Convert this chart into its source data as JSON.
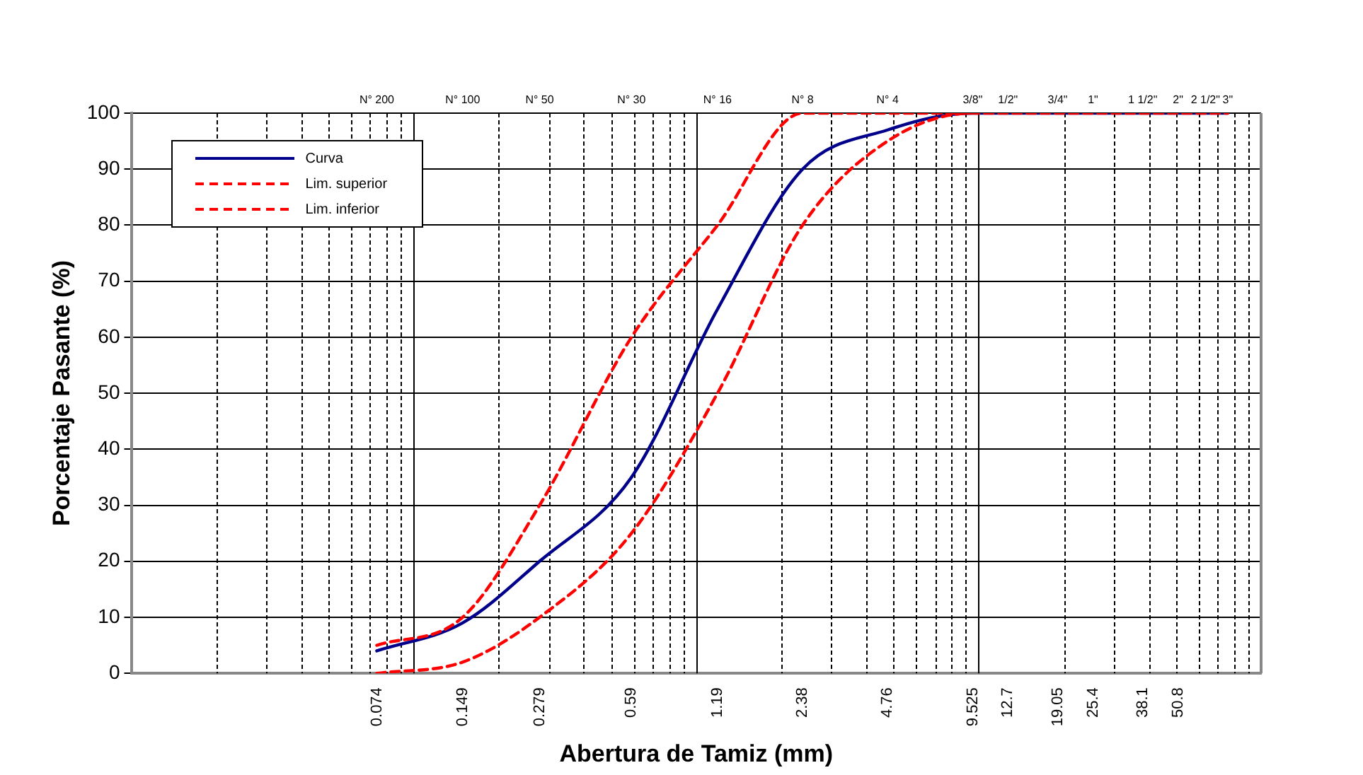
{
  "chart_data": {
    "type": "line",
    "xlabel": "Abertura de Tamiz (mm)",
    "ylabel": "Porcentaje Pasante (%)",
    "log": "x",
    "grid": true,
    "legend": "top left",
    "xlim": [
      0.01,
      100
    ],
    "xticks": [
      {
        "value": 0.074,
        "label": "0.074"
      },
      {
        "value": 0.149,
        "label": "0.149"
      },
      {
        "value": 0.279,
        "label": "0.279"
      },
      {
        "value": 0.59,
        "label": "0.59"
      },
      {
        "value": 1.19,
        "label": "1.19"
      },
      {
        "value": 2.38,
        "label": "2.38"
      },
      {
        "value": 4.76,
        "label": "4.76"
      },
      {
        "value": 9.525,
        "label": "9.525"
      },
      {
        "value": 12.7,
        "label": "12.7"
      },
      {
        "value": 19.05,
        "label": "19.05"
      },
      {
        "value": 25.4,
        "label": "25.4"
      },
      {
        "value": 38.1,
        "label": "38.1"
      },
      {
        "value": 50.8,
        "label": "50.8"
      }
    ],
    "annotations": [
      "N° 200",
      "N° 100",
      "N° 50",
      "N° 30",
      "N° 16",
      "N° 8",
      "N° 4",
      "3/8\"",
      "1/2\"",
      "3/4\"",
      "1\"",
      "1 1/2\"",
      "2\"",
      "2 1/2\"",
      "3\""
    ],
    "ylim": [
      0,
      100
    ],
    "yticks": [
      0,
      10,
      20,
      30,
      40,
      50,
      60,
      70,
      80,
      90,
      100
    ],
    "x": [
      0.074,
      0.149,
      0.279,
      0.59,
      1.19,
      2.38,
      4.76,
      9.525,
      12.7,
      19.05,
      25.4,
      38.1,
      50.8,
      63.5,
      76.2
    ],
    "series": [
      {
        "name": "Curva",
        "color": "#00008b",
        "line_style": "solid",
        "values": [
          4,
          9,
          20,
          35,
          65,
          90,
          97,
          100,
          100,
          100,
          100,
          100,
          100,
          100,
          100
        ]
      },
      {
        "name": "Lim. superior",
        "color": "#ff0000",
        "line_style": "dashed",
        "values": [
          5,
          10,
          30,
          60,
          80,
          100,
          100,
          100,
          null,
          null,
          null,
          null,
          null,
          null,
          null
        ]
      },
      {
        "name": "Lim. inferior",
        "color": "#ff0000",
        "line_style": "dashed",
        "values": [
          0,
          2,
          10,
          25,
          50,
          80,
          95,
          100,
          100,
          100,
          100,
          100,
          100,
          100,
          100
        ]
      }
    ]
  }
}
